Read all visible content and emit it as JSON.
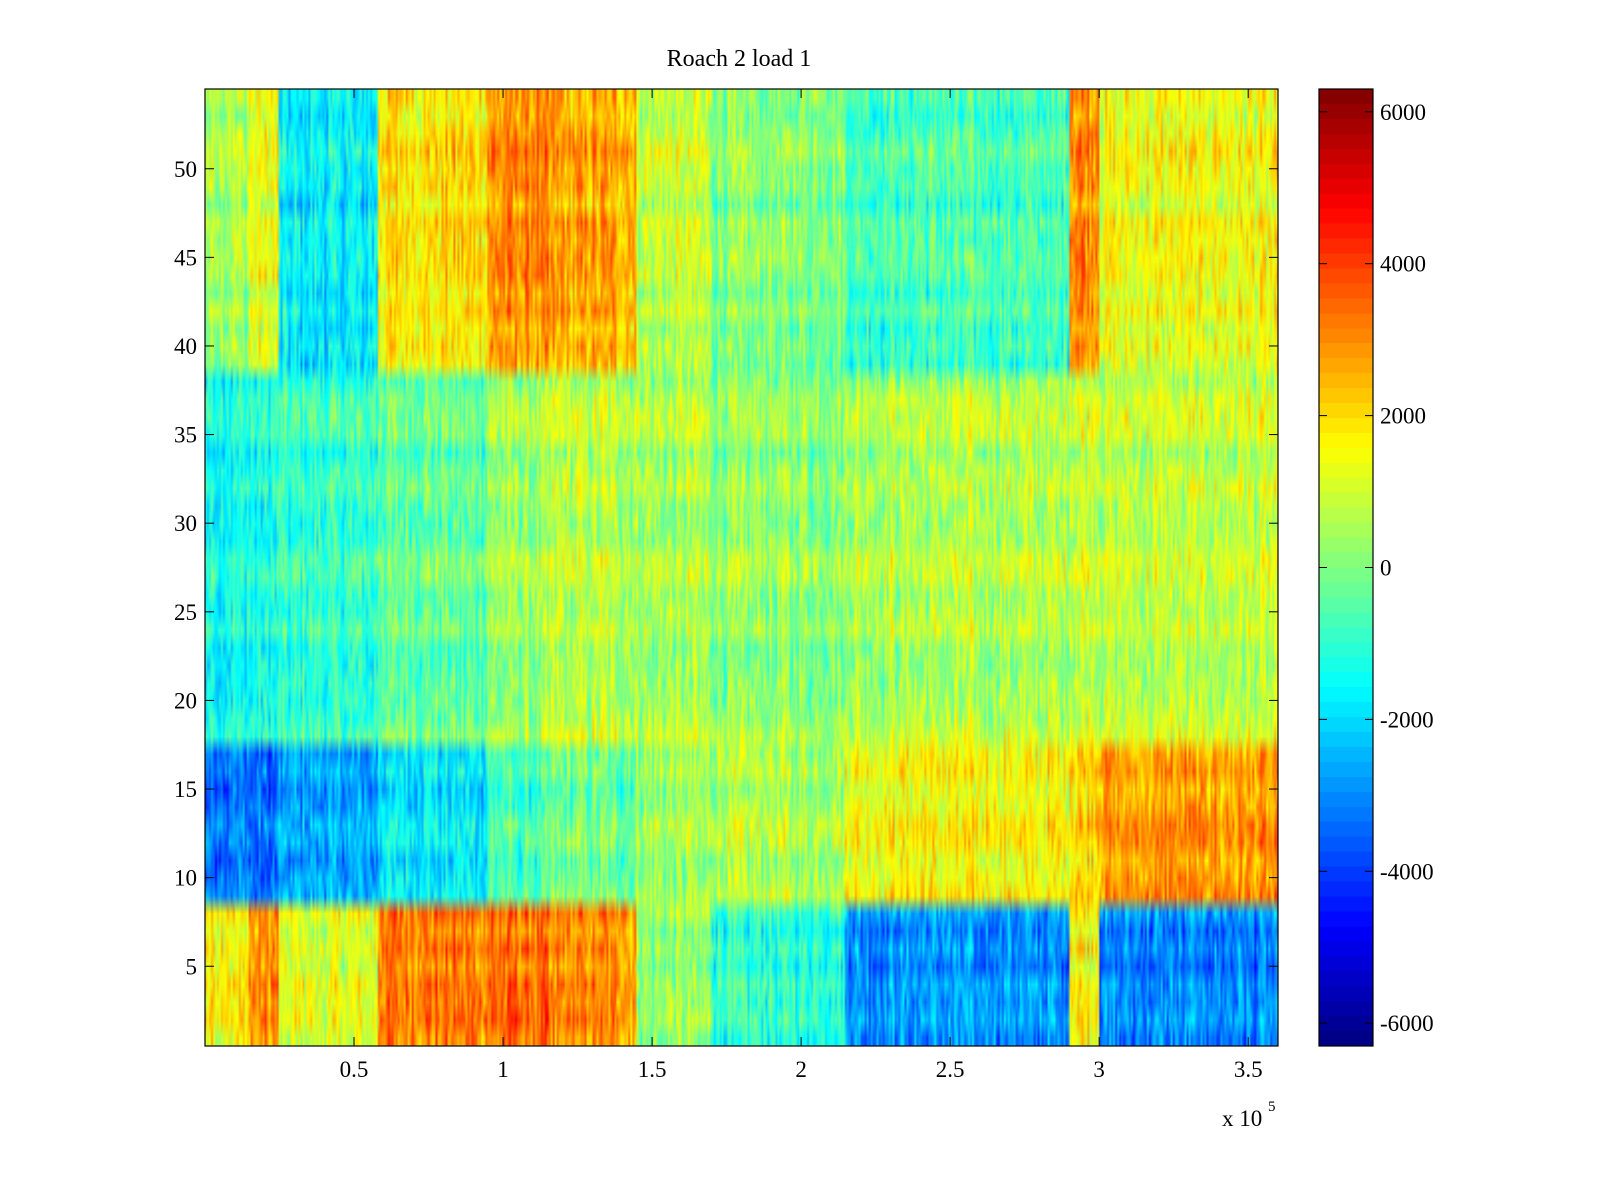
{
  "chart_data": {
    "type": "heatmap",
    "title": "Roach 2 load 1",
    "xlabel": "",
    "ylabel": "",
    "x_range": [
      0,
      360000
    ],
    "y_range": [
      0.5,
      54.5
    ],
    "x_ticks": [
      50000,
      100000,
      150000,
      200000,
      250000,
      300000,
      350000
    ],
    "x_tick_labels": [
      "0.5",
      "1",
      "1.5",
      "2",
      "2.5",
      "3",
      "3.5"
    ],
    "x_exponent_label": {
      "base": "x 10",
      "exponent": "5"
    },
    "y_ticks": [
      5,
      10,
      15,
      20,
      25,
      30,
      35,
      40,
      45,
      50
    ],
    "y_tick_labels": [
      "5",
      "10",
      "15",
      "20",
      "25",
      "30",
      "35",
      "40",
      "45",
      "50"
    ],
    "rows": 54,
    "colormap": "jet",
    "colorbar": {
      "range": [
        -6300,
        6300
      ],
      "ticks": [
        -6000,
        -4000,
        -2000,
        0,
        2000,
        4000,
        6000
      ],
      "tick_labels": [
        "-6000",
        "-4000",
        "-2000",
        "0",
        "2000",
        "4000",
        "6000"
      ]
    },
    "x_bands": [
      {
        "range": [
          0,
          15000
        ],
        "rows_1_8": 1800,
        "rows_9_17": -3200,
        "rows_18_38": -1300,
        "rows_39_54": 500
      },
      {
        "range": [
          15000,
          25000
        ],
        "rows_1_8": 3000,
        "rows_9_17": -3500,
        "rows_18_38": -1300,
        "rows_39_54": 1200
      },
      {
        "range": [
          25000,
          58000
        ],
        "rows_1_8": 1200,
        "rows_9_17": -2800,
        "rows_18_38": -1000,
        "rows_39_54": -1800
      },
      {
        "range": [
          58000,
          95000
        ],
        "rows_1_8": 3300,
        "rows_9_17": -1800,
        "rows_18_38": -300,
        "rows_39_54": 1800
      },
      {
        "range": [
          95000,
          115000
        ],
        "rows_1_8": 3500,
        "rows_9_17": -800,
        "rows_18_38": 300,
        "rows_39_54": 2800
      },
      {
        "range": [
          115000,
          145000
        ],
        "rows_1_8": 3000,
        "rows_9_17": -300,
        "rows_18_38": 700,
        "rows_39_54": 2500
      },
      {
        "range": [
          145000,
          170000
        ],
        "rows_1_8": 300,
        "rows_9_17": 300,
        "rows_18_38": 500,
        "rows_39_54": 700
      },
      {
        "range": [
          170000,
          215000
        ],
        "rows_1_8": -1000,
        "rows_9_17": 500,
        "rows_18_38": 200,
        "rows_39_54": 0
      },
      {
        "range": [
          215000,
          290000
        ],
        "rows_1_8": -2800,
        "rows_9_17": 1500,
        "rows_18_38": 600,
        "rows_39_54": -800
      },
      {
        "range": [
          290000,
          300000
        ],
        "rows_1_8": 1800,
        "rows_9_17": 2200,
        "rows_18_38": 1000,
        "rows_39_54": 3000
      },
      {
        "range": [
          300000,
          360000
        ],
        "rows_1_8": -3000,
        "rows_9_17": 2700,
        "rows_18_38": 800,
        "rows_39_54": 1300
      }
    ]
  }
}
